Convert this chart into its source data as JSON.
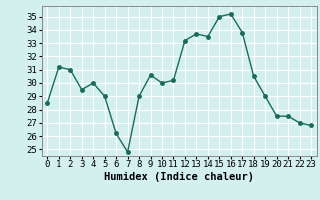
{
  "x": [
    0,
    1,
    2,
    3,
    4,
    5,
    6,
    7,
    8,
    9,
    10,
    11,
    12,
    13,
    14,
    15,
    16,
    17,
    18,
    19,
    20,
    21,
    22,
    23
  ],
  "y": [
    28.5,
    31.2,
    31.0,
    29.5,
    30.0,
    29.0,
    26.2,
    24.8,
    29.0,
    30.6,
    30.0,
    30.2,
    33.2,
    33.7,
    33.5,
    35.0,
    35.2,
    33.8,
    30.5,
    29.0,
    27.5,
    27.5,
    27.0,
    26.8
  ],
  "line_color": "#1a6b5a",
  "marker": "o",
  "markersize": 2.5,
  "linewidth": 1.0,
  "xlabel": "Humidex (Indice chaleur)",
  "ylim": [
    24.5,
    35.8
  ],
  "xlim": [
    -0.5,
    23.5
  ],
  "yticks": [
    25,
    26,
    27,
    28,
    29,
    30,
    31,
    32,
    33,
    34,
    35
  ],
  "xticks": [
    0,
    1,
    2,
    3,
    4,
    5,
    6,
    7,
    8,
    9,
    10,
    11,
    12,
    13,
    14,
    15,
    16,
    17,
    18,
    19,
    20,
    21,
    22,
    23
  ],
  "bg_color": "#d4f0ee",
  "grid_color": "#ffffff",
  "xlabel_fontsize": 7.5,
  "tick_fontsize": 6.5
}
